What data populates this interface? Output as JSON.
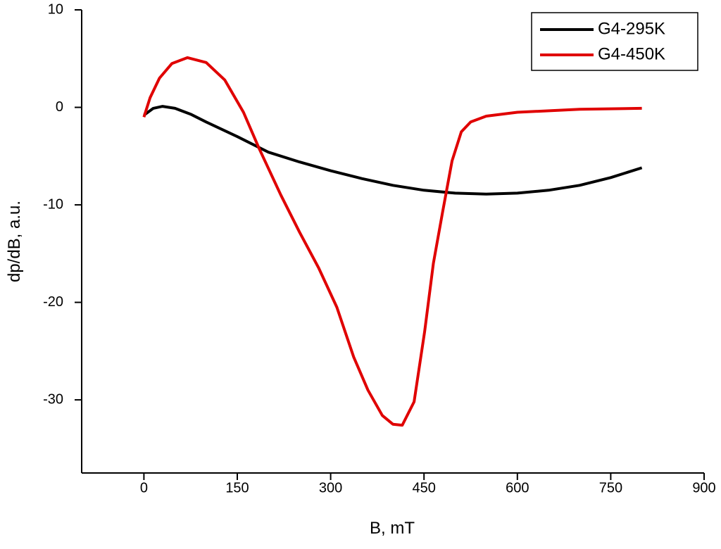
{
  "chart_data": {
    "type": "line",
    "x_label": "B, mT",
    "y_label": "dp/dB, a.u.",
    "xlim": [
      -100,
      900
    ],
    "xticks": [
      0,
      150,
      300,
      450,
      600,
      750,
      900
    ],
    "ylim": [
      -37.5,
      10
    ],
    "yticks": [
      10,
      0,
      -10,
      -20,
      -30
    ],
    "legend": "upper right",
    "series": [
      {
        "name": "G4-295K",
        "color": "#000000",
        "x": [
          0,
          15,
          30,
          50,
          75,
          100,
          150,
          200,
          250,
          300,
          350,
          400,
          450,
          500,
          550,
          600,
          650,
          700,
          750,
          800
        ],
        "values": [
          -0.8,
          -0.1,
          0.1,
          -0.1,
          -0.7,
          -1.5,
          -3.0,
          -4.6,
          -5.6,
          -6.5,
          -7.3,
          -8.0,
          -8.5,
          -8.8,
          -8.9,
          -8.8,
          -8.5,
          -8.0,
          -7.2,
          -6.2
        ]
      },
      {
        "name": "G4-450K",
        "color": "#e00000",
        "x": [
          0,
          10,
          25,
          45,
          70,
          100,
          130,
          160,
          185,
          220,
          250,
          281,
          310,
          337,
          360,
          383,
          400,
          415,
          434,
          451,
          465,
          480,
          495,
          510,
          525,
          550,
          600,
          700,
          800
        ],
        "values": [
          -1.0,
          1.0,
          3.0,
          4.5,
          5.1,
          4.6,
          2.8,
          -0.5,
          -4.2,
          -9.0,
          -12.8,
          -16.5,
          -20.5,
          -25.6,
          -29.0,
          -31.6,
          -32.5,
          -32.6,
          -30.2,
          -23.0,
          -16.0,
          -10.7,
          -5.5,
          -2.5,
          -1.5,
          -0.9,
          -0.5,
          -0.2,
          -0.1
        ]
      }
    ]
  }
}
